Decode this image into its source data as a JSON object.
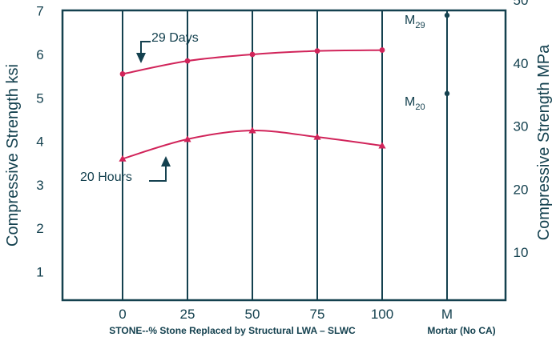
{
  "chart_data": {
    "type": "line",
    "xlabel": "STONE--% Stone Replaced by Structural LWA – SLWC",
    "xlabel_secondary": "Mortar (No CA)",
    "ylabel_left": "Compressive Strength ksi",
    "ylabel_right": "Compressive Strength MPa",
    "x": [
      0,
      25,
      50,
      75,
      100
    ],
    "x_ticks": [
      "0",
      "25",
      "50",
      "75",
      "100",
      "M"
    ],
    "y_ticks_left": [
      "1",
      "2",
      "3",
      "4",
      "5",
      "6",
      "7"
    ],
    "y_ticks_right": [
      "10",
      "20",
      "30",
      "40",
      "50"
    ],
    "ylim_left": [
      0.5,
      7
    ],
    "series": [
      {
        "name": "29 Days",
        "marker": "circle",
        "values": [
          5.55,
          5.85,
          6.0,
          6.08,
          6.1
        ]
      },
      {
        "name": "20 Hours",
        "marker": "triangle",
        "values": [
          3.6,
          4.05,
          4.25,
          4.1,
          3.9
        ]
      }
    ],
    "mortar_points": [
      {
        "label": "M",
        "subscript": "29",
        "value": 6.9
      },
      {
        "label": "M",
        "subscript": "20",
        "value": 5.1
      }
    ],
    "annotations": [
      {
        "text": "29 Days",
        "arrow": "down"
      },
      {
        "text": "20 Hours",
        "arrow": "up"
      }
    ],
    "colors": {
      "series": "#d1245a",
      "axis": "#14414f"
    },
    "grid": "vertical"
  }
}
